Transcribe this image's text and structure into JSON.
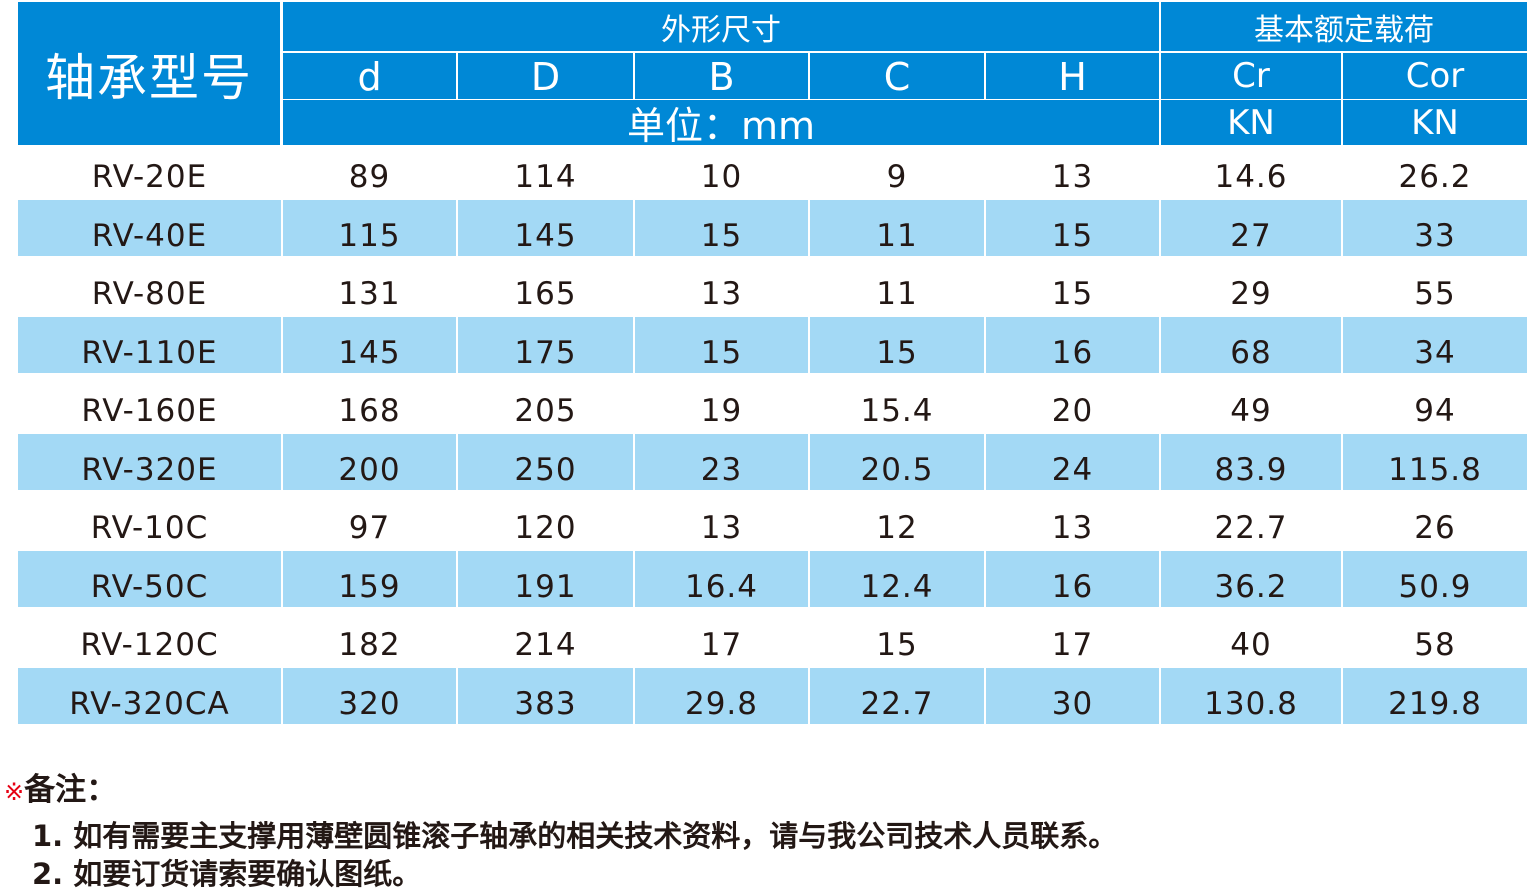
{
  "header": {
    "model": "轴承型号",
    "dimensions": "外形尺寸",
    "load": "基本额定载荷",
    "dim_cols": [
      "d",
      "D",
      "B",
      "C",
      "H"
    ],
    "unit": "单位：mm",
    "load_cols": [
      "Cr",
      "Cor"
    ],
    "load_units": [
      "KN",
      "KN"
    ]
  },
  "rows": [
    [
      "RV-20E",
      "89",
      "114",
      "10",
      "9",
      "13",
      "14.6",
      "26.2"
    ],
    [
      "RV-40E",
      "115",
      "145",
      "15",
      "11",
      "15",
      "27",
      "33"
    ],
    [
      "RV-80E",
      "131",
      "165",
      "13",
      "11",
      "15",
      "29",
      "55"
    ],
    [
      "RV-110E",
      "145",
      "175",
      "15",
      "15",
      "16",
      "68",
      "34"
    ],
    [
      "RV-160E",
      "168",
      "205",
      "19",
      "15.4",
      "20",
      "49",
      "94"
    ],
    [
      "RV-320E",
      "200",
      "250",
      "23",
      "20.5",
      "24",
      "83.9",
      "115.8"
    ],
    [
      "RV-10C",
      "97",
      "120",
      "13",
      "12",
      "13",
      "22.7",
      "26"
    ],
    [
      "RV-50C",
      "159",
      "191",
      "16.4",
      "12.4",
      "16",
      "36.2",
      "50.9"
    ],
    [
      "RV-120C",
      "182",
      "214",
      "17",
      "15",
      "17",
      "40",
      "58"
    ],
    [
      "RV-320CA",
      "320",
      "383",
      "29.8",
      "22.7",
      "30",
      "130.8",
      "219.8"
    ]
  ],
  "colors": {
    "header": "#0088d6",
    "stripe": "#a3d9f5",
    "mark": "#e60012"
  },
  "notes": {
    "mark": "※",
    "title": "备注：",
    "items": [
      "1. 如有需要主支撑用薄壁圆锥滚子轴承的相关技术资料，请与我公司技术人员联系。",
      "2. 如要订货请索要确认图纸。"
    ]
  }
}
